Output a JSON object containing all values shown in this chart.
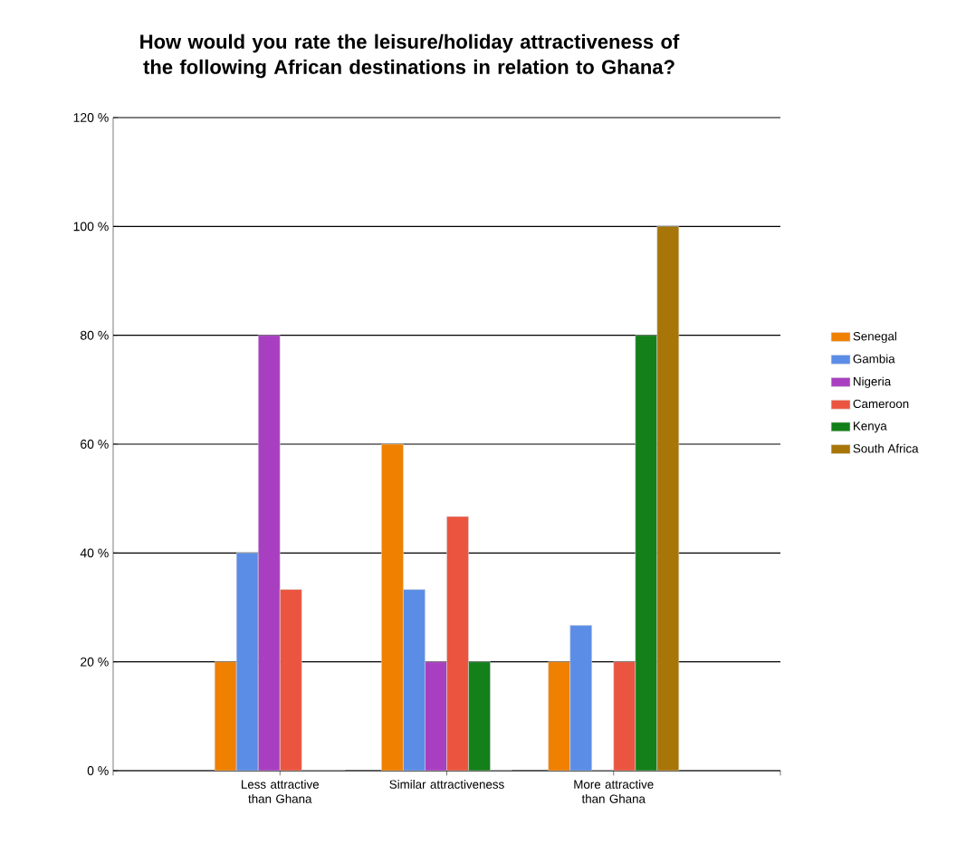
{
  "chart_data": {
    "type": "bar",
    "title": "How would you rate the leisure/holiday attractiveness of the following African destinations in relation to Ghana?",
    "categories": [
      "Less attractive than Ghana",
      "Similar attractiveness",
      "More attractive than Ghana"
    ],
    "series": [
      {
        "name": "Senegal",
        "color": "#f08000",
        "values": [
          20,
          60,
          20
        ]
      },
      {
        "name": "Gambia",
        "color": "#5b8de6",
        "values": [
          40,
          33.3,
          26.7
        ]
      },
      {
        "name": "Nigeria",
        "color": "#a83fc0",
        "values": [
          80,
          20,
          0
        ]
      },
      {
        "name": "Cameroon",
        "color": "#eb5540",
        "values": [
          33.3,
          46.7,
          20
        ]
      },
      {
        "name": "Kenya",
        "color": "#13801a",
        "values": [
          0,
          20,
          80
        ]
      },
      {
        "name": "South Africa",
        "color": "#a87508",
        "values": [
          0,
          0,
          100
        ]
      }
    ],
    "ylim": [
      0,
      120
    ],
    "yticks": [
      {
        "value": 0,
        "label": "0 %"
      },
      {
        "value": 20,
        "label": "20 %"
      },
      {
        "value": 40,
        "label": "40 %"
      },
      {
        "value": 60,
        "label": "60 %"
      },
      {
        "value": 80,
        "label": "80 %"
      },
      {
        "value": 100,
        "label": "100 %"
      },
      {
        "value": 120,
        "label": "120 %"
      }
    ],
    "grid": "y",
    "legend": "right"
  }
}
